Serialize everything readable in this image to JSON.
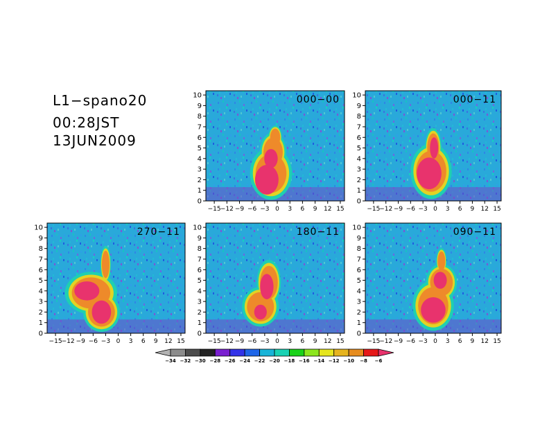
{
  "header": {
    "title": "L1−spano20",
    "time": "00:28JST",
    "date": "13JUN2009"
  },
  "chart_data": {
    "type": "heatmap",
    "axes": {
      "x_ticks": [
        "−15",
        "−12",
        "−9",
        "−6",
        "−3",
        "0",
        "3",
        "6",
        "9",
        "12",
        "15"
      ],
      "x_range": [
        -17,
        16
      ],
      "y_ticks": [
        "0",
        "1",
        "2",
        "3",
        "4",
        "5",
        "6",
        "7",
        "8",
        "9",
        "10"
      ],
      "y_range": [
        0,
        10.4
      ]
    },
    "panels": [
      {
        "label": "000−00",
        "core_color": "#e8336d",
        "blob": [
          {
            "x": -1.5,
            "y": 2.6,
            "rx": 4.0,
            "ry": 2.0
          },
          {
            "x": -1.0,
            "y": 4.6,
            "rx": 2.5,
            "ry": 1.5
          },
          {
            "x": -0.5,
            "y": 6.0,
            "rx": 1.3,
            "ry": 0.9
          }
        ],
        "core": [
          {
            "x": -2.5,
            "y": 2.0,
            "rx": 2.8,
            "ry": 1.4
          },
          {
            "x": -1.5,
            "y": 4.0,
            "rx": 1.6,
            "ry": 0.9
          }
        ]
      },
      {
        "label": "000−11",
        "core_color": "#e8336d",
        "blob": [
          {
            "x": -1.0,
            "y": 2.8,
            "rx": 4.0,
            "ry": 2.1
          },
          {
            "x": -0.5,
            "y": 5.0,
            "rx": 1.6,
            "ry": 1.5
          }
        ],
        "core": [
          {
            "x": -1.5,
            "y": 2.6,
            "rx": 3.0,
            "ry": 1.5
          },
          {
            "x": -0.3,
            "y": 5.0,
            "rx": 1.0,
            "ry": 1.0
          }
        ]
      },
      {
        "label": "270−11",
        "core_color": "#e8336d",
        "blob": [
          {
            "x": -6.5,
            "y": 3.8,
            "rx": 5.0,
            "ry": 1.6
          },
          {
            "x": -4.0,
            "y": 2.0,
            "rx": 3.5,
            "ry": 1.5
          },
          {
            "x": -3.0,
            "y": 6.5,
            "rx": 1.0,
            "ry": 1.4
          }
        ],
        "core": [
          {
            "x": -7.5,
            "y": 4.0,
            "rx": 3.0,
            "ry": 0.9
          },
          {
            "x": -4.0,
            "y": 2.0,
            "rx": 2.3,
            "ry": 1.1
          }
        ]
      },
      {
        "label": "180−11",
        "core_color": "#e8336d",
        "blob": [
          {
            "x": -4.0,
            "y": 2.5,
            "rx": 3.5,
            "ry": 1.5
          },
          {
            "x": -2.0,
            "y": 4.8,
            "rx": 2.3,
            "ry": 1.7
          }
        ],
        "core": [
          {
            "x": -2.5,
            "y": 4.4,
            "rx": 1.6,
            "ry": 1.2
          },
          {
            "x": -4.0,
            "y": 2.0,
            "rx": 1.5,
            "ry": 0.7
          }
        ]
      },
      {
        "label": "090−11",
        "core_color": "#e8336d",
        "blob": [
          {
            "x": -0.5,
            "y": 2.6,
            "rx": 4.0,
            "ry": 1.9
          },
          {
            "x": 1.5,
            "y": 4.8,
            "rx": 3.0,
            "ry": 1.4
          },
          {
            "x": 1.5,
            "y": 6.8,
            "rx": 1.0,
            "ry": 1.0
          }
        ],
        "core": [
          {
            "x": -0.5,
            "y": 2.2,
            "rx": 3.0,
            "ry": 1.2
          },
          {
            "x": 1.2,
            "y": 5.0,
            "rx": 1.6,
            "ry": 0.8
          }
        ]
      }
    ],
    "colorbar": {
      "labels": [
        "−34",
        "−32",
        "−30",
        "−28",
        "−26",
        "−24",
        "−22",
        "−20",
        "−18",
        "−16",
        "−14",
        "−12",
        "−10",
        "−8",
        "−6"
      ],
      "colors": [
        "#b2b2b2",
        "#8c8c8c",
        "#4d4d4d",
        "#222222",
        "#7a1fd0",
        "#3333e8",
        "#1f66e8",
        "#19b4d8",
        "#19d2b4",
        "#19d219",
        "#8ce61e",
        "#e6e61e",
        "#e6b41e",
        "#e68c1e",
        "#e61919",
        "#e8336d"
      ]
    }
  }
}
